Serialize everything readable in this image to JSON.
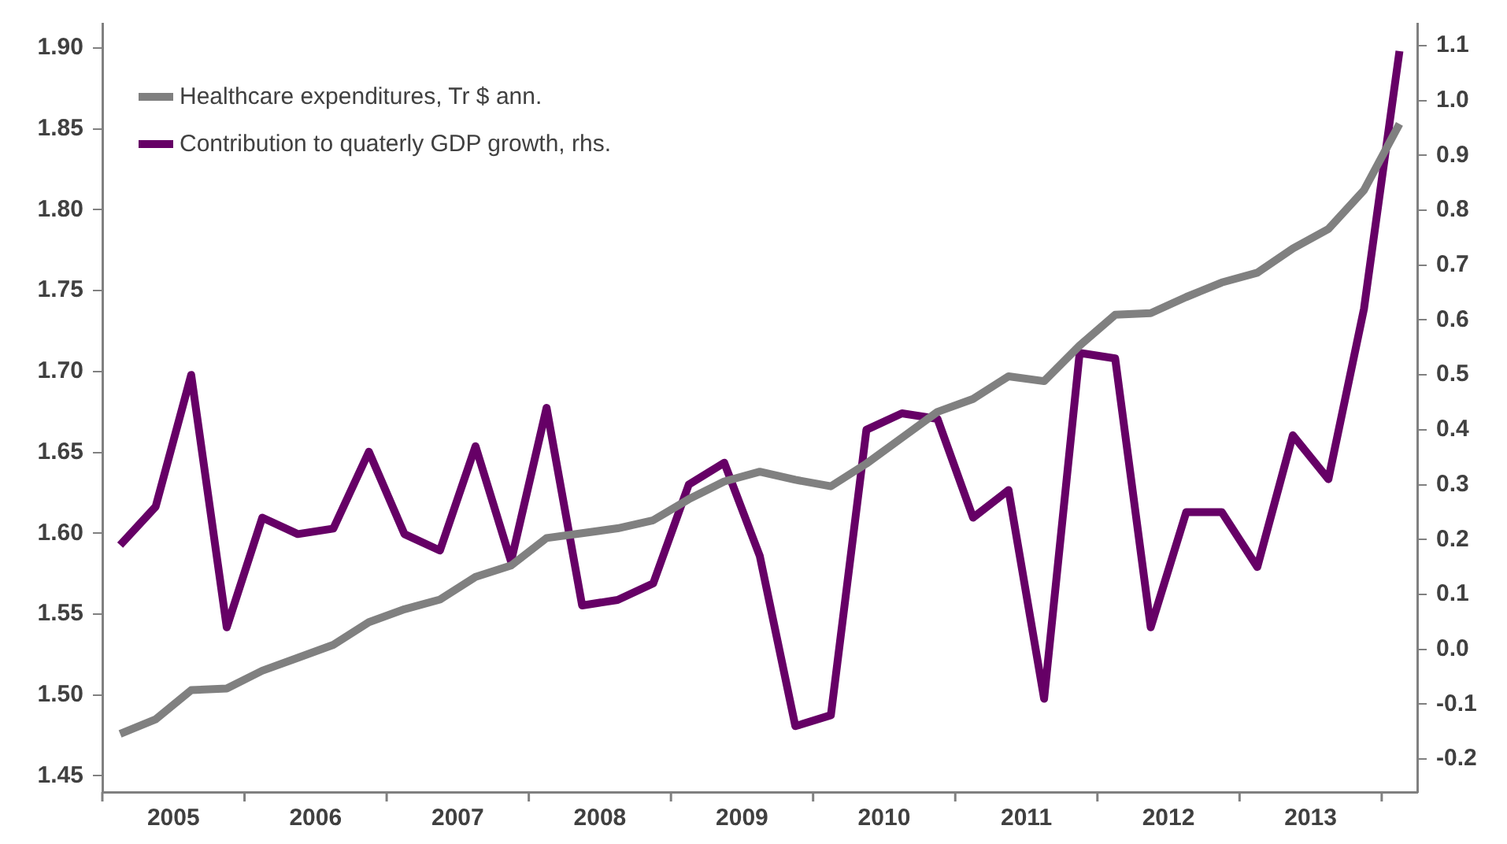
{
  "chart_data": {
    "type": "line",
    "x": [
      2005.125,
      2005.375,
      2005.625,
      2005.875,
      2006.125,
      2006.375,
      2006.625,
      2006.875,
      2007.125,
      2007.375,
      2007.625,
      2007.875,
      2008.125,
      2008.375,
      2008.625,
      2008.875,
      2009.125,
      2009.375,
      2009.625,
      2009.875,
      2010.125,
      2010.375,
      2010.625,
      2010.875,
      2011.125,
      2011.375,
      2011.625,
      2011.875,
      2012.125,
      2012.375,
      2012.625,
      2012.875,
      2013.125,
      2013.375,
      2013.625,
      2013.875,
      2014.125
    ],
    "series": [
      {
        "name": "Healthcare expenditures, Tr $ ann.",
        "color": "#808080",
        "values": [
          1.476,
          1.485,
          1.503,
          1.504,
          1.515,
          1.523,
          1.531,
          1.545,
          1.553,
          1.559,
          1.573,
          1.58,
          1.597,
          1.6,
          1.603,
          1.608,
          1.621,
          1.632,
          1.638,
          1.633,
          1.629,
          1.643,
          1.659,
          1.675,
          1.683,
          1.697,
          1.694,
          1.716,
          1.735,
          1.736,
          1.746,
          1.755,
          1.761,
          1.776,
          1.788,
          1.812,
          1.853
        ]
      },
      {
        "name": "Contribution to quaterly GDP growth, rhs.",
        "color": "#660066",
        "axis": "y2",
        "values": [
          0.19,
          0.26,
          0.5,
          0.04,
          0.24,
          0.21,
          0.22,
          0.36,
          0.21,
          0.18,
          0.37,
          0.16,
          0.44,
          0.08,
          0.09,
          0.12,
          0.3,
          0.34,
          0.17,
          -0.14,
          -0.12,
          0.4,
          0.43,
          0.42,
          0.24,
          0.29,
          -0.09,
          0.54,
          0.53,
          0.04,
          0.25,
          0.25,
          0.15,
          0.39,
          0.31,
          0.62,
          1.09
        ]
      }
    ],
    "xlim": [
      2005,
      2014.25
    ],
    "xticks": [
      {
        "value": 2005,
        "label": null
      },
      {
        "value": 2005.5,
        "label": "2005"
      },
      {
        "value": 2006,
        "label": null
      },
      {
        "value": 2006.5,
        "label": "2006"
      },
      {
        "value": 2007,
        "label": null
      },
      {
        "value": 2007.5,
        "label": "2007"
      },
      {
        "value": 2008,
        "label": null
      },
      {
        "value": 2008.5,
        "label": "2008"
      },
      {
        "value": 2009,
        "label": null
      },
      {
        "value": 2009.5,
        "label": "2009"
      },
      {
        "value": 2010,
        "label": null
      },
      {
        "value": 2010.5,
        "label": "2010"
      },
      {
        "value": 2011,
        "label": null
      },
      {
        "value": 2011.5,
        "label": "2011"
      },
      {
        "value": 2012,
        "label": null
      },
      {
        "value": 2012.5,
        "label": "2012"
      },
      {
        "value": 2013,
        "label": null
      },
      {
        "value": 2013.5,
        "label": "2013"
      },
      {
        "value": 2014,
        "label": null
      }
    ],
    "ylim": [
      1.44,
      1.915
    ],
    "yticks": [
      {
        "value": 1.45,
        "label": "1.45"
      },
      {
        "value": 1.5,
        "label": "1.50"
      },
      {
        "value": 1.55,
        "label": "1.55"
      },
      {
        "value": 1.6,
        "label": "1.60"
      },
      {
        "value": 1.65,
        "label": "1.65"
      },
      {
        "value": 1.7,
        "label": "1.70"
      },
      {
        "value": 1.75,
        "label": "1.75"
      },
      {
        "value": 1.8,
        "label": "1.80"
      },
      {
        "value": 1.85,
        "label": "1.85"
      },
      {
        "value": 1.9,
        "label": "1.90"
      }
    ],
    "y2lim": [
      -0.26,
      1.14
    ],
    "y2ticks": [
      -0.2,
      -0.1,
      {
        "value": 0,
        "label": "0.0"
      },
      0.1,
      0.2,
      0.3,
      0.4,
      0.5,
      0.6,
      0.7,
      0.8,
      0.9,
      {
        "value": 1,
        "label": "1.0"
      },
      1.1
    ],
    "grid": false,
    "legend": "top left",
    "marker": "none",
    "line_style": "solid"
  }
}
